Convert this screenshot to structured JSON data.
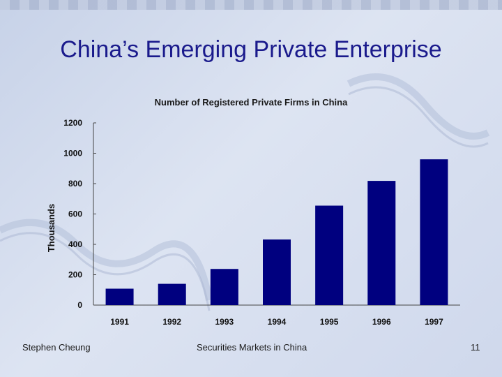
{
  "slide": {
    "title": "China’s Emerging Private Enterprise",
    "footer_left": "Stephen Cheung",
    "footer_center": "Securities Markets in China",
    "page_number": "11"
  },
  "chart_data": {
    "type": "bar",
    "title": "Number of Registered Private Firms in China",
    "ylabel": "Thousands",
    "xlabel": "",
    "categories": [
      "1991",
      "1992",
      "1993",
      "1994",
      "1995",
      "1996",
      "1997"
    ],
    "values": [
      108,
      140,
      238,
      432,
      655,
      818,
      960
    ],
    "ylim": [
      0,
      1200
    ],
    "yticks": [
      0,
      200,
      400,
      600,
      800,
      1000,
      1200
    ],
    "bar_color": "#00007f",
    "grid": false,
    "legend": "none"
  }
}
